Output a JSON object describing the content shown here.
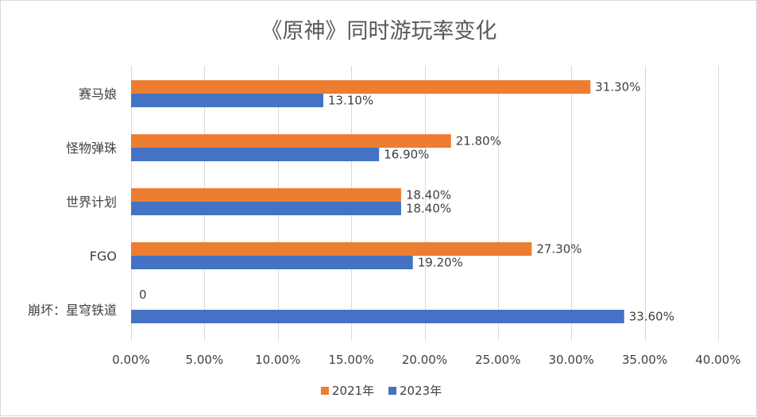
{
  "chart_data": {
    "type": "bar",
    "orientation": "horizontal",
    "title": "《原神》同时游玩率变化",
    "categories": [
      "赛马娘",
      "怪物弹珠",
      "世界计划",
      "FGO",
      "崩坏：星穹铁道"
    ],
    "series": [
      {
        "name": "2021年",
        "color": "#ED7D31",
        "values": [
          31.3,
          21.8,
          18.4,
          27.3,
          0
        ],
        "labels": [
          "31.30%",
          "21.80%",
          "18.40%",
          "27.30%",
          "0"
        ]
      },
      {
        "name": "2023年",
        "color": "#4472C4",
        "values": [
          13.1,
          16.9,
          18.4,
          19.2,
          33.6
        ],
        "labels": [
          "13.10%",
          "16.90%",
          "18.40%",
          "19.20%",
          "33.60%"
        ]
      }
    ],
    "xlim": [
      0,
      40
    ],
    "xticks": [
      0,
      5,
      10,
      15,
      20,
      25,
      30,
      35,
      40
    ],
    "xtick_labels": [
      "0.00%",
      "5.00%",
      "10.00%",
      "15.00%",
      "20.00%",
      "25.00%",
      "30.00%",
      "35.00%",
      "40.00%"
    ],
    "grid": true,
    "legend_position": "bottom"
  }
}
